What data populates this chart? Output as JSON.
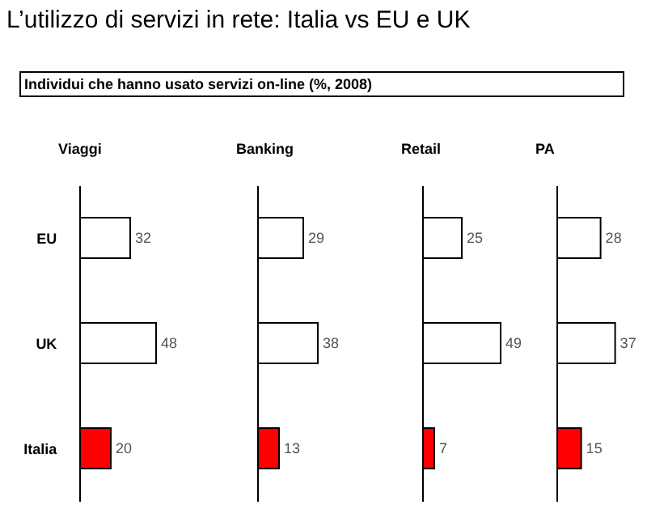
{
  "chart_data": [
    {
      "type": "bar",
      "orientation": "horizontal",
      "title": "Viaggi",
      "categories": [
        "EU",
        "UK",
        "Italia"
      ],
      "values": [
        32,
        48,
        20
      ],
      "colors": [
        "#ffffff",
        "#ffffff",
        "#ff0000"
      ],
      "data_labels": true,
      "tick_labels": "y"
    },
    {
      "type": "bar",
      "orientation": "horizontal",
      "title": "Banking",
      "categories": [
        "EU",
        "UK",
        "Italia"
      ],
      "values": [
        29,
        38,
        13
      ],
      "colors": [
        "#ffffff",
        "#ffffff",
        "#ff0000"
      ],
      "data_labels": true,
      "tick_labels": false
    },
    {
      "type": "bar",
      "orientation": "horizontal",
      "title": "Retail",
      "categories": [
        "EU",
        "UK",
        "Italia"
      ],
      "values": [
        25,
        49,
        7
      ],
      "colors": [
        "#ffffff",
        "#ffffff",
        "#ff0000"
      ],
      "data_labels": true,
      "tick_labels": false
    },
    {
      "type": "bar",
      "orientation": "horizontal",
      "title": "PA",
      "categories": [
        "EU",
        "UK",
        "Italia"
      ],
      "values": [
        28,
        37,
        15
      ],
      "colors": [
        "#ffffff",
        "#ffffff",
        "#ff0000"
      ],
      "data_labels": true,
      "tick_labels": false,
      "annotations": [
        "L’utilizzo di servizi in rete: Italia vs EU e UK",
        "Individui che hanno usato servizi on-line (%, 2008)"
      ]
    }
  ]
}
